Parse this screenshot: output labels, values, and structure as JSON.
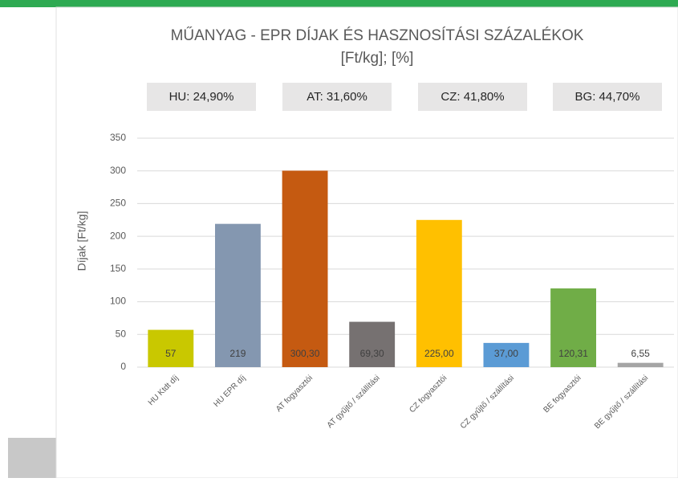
{
  "chart_data": {
    "type": "bar",
    "title": "MŰANYAG - EPR DÍJAK ÉS HASZNOSÍTÁSI SZÁZALÉKOK",
    "subtitle": "[Ft/kg]; [%]",
    "annotations": [
      "HU: 24,90%",
      "AT: 31,60%",
      "CZ: 41,80%",
      "BG: 44,70%"
    ],
    "y_label": "Díjak [Ft/kg]",
    "categories": [
      "HU Ktdt díj",
      "HU EPR díj",
      "AT fogyasztói",
      "AT gyűjtő / szállítási",
      "CZ fogyasztói",
      "CZ gyűjtő / szállítási",
      "BE fogyasztói",
      "BE gyűjtő / szállítási"
    ],
    "values": [
      57,
      219,
      300.3,
      69.3,
      225.0,
      37.0,
      120.31,
      6.55
    ],
    "value_labels": [
      "57",
      "219",
      "300,30",
      "69,30",
      "225,00",
      "37,00",
      "120,31",
      "6,55"
    ],
    "colors": [
      "#c9c800",
      "#8497b0",
      "#c55a11",
      "#767171",
      "#ffc000",
      "#5b9bd5",
      "#70ad47",
      "#a5a5a5"
    ],
    "ylim": [
      0,
      350
    ],
    "yticks": [
      0,
      50,
      100,
      150,
      200,
      250,
      300,
      350
    ],
    "grid": true
  }
}
